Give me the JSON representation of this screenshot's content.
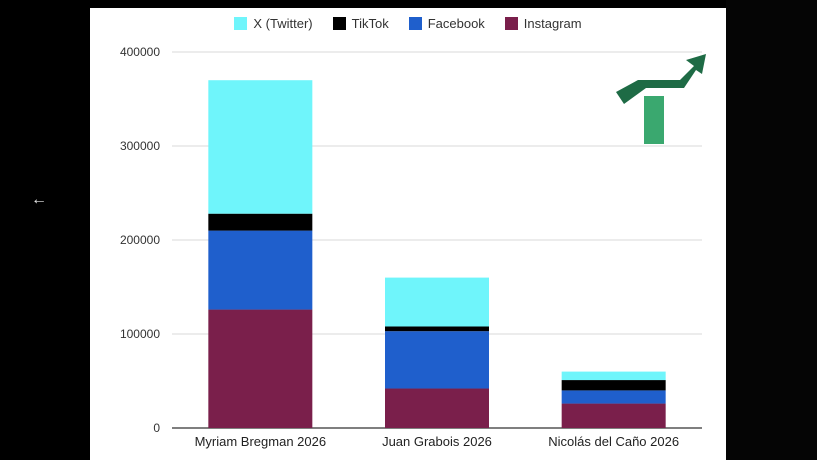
{
  "window": {
    "back_icon": "arrow-left-icon"
  },
  "logo": {
    "icon": "growth-arrow-logo-icon",
    "colors": [
      "#1e6b45",
      "#3aa86f"
    ]
  },
  "chart_data": {
    "type": "bar",
    "stacked": true,
    "categories": [
      "Myriam Bregman 2026",
      "Juan Grabois 2026",
      "Nicolás del Caño 2026"
    ],
    "series": [
      {
        "name": "Instagram",
        "color": "#7a1f4b",
        "values": [
          126000,
          42000,
          26000
        ]
      },
      {
        "name": "Facebook",
        "color": "#1f5fcc",
        "values": [
          84000,
          61000,
          14000
        ]
      },
      {
        "name": "TikTok",
        "color": "#000000",
        "values": [
          18000,
          5000,
          11000
        ]
      },
      {
        "name": "X (Twitter)",
        "color": "#6ff5fb",
        "values": [
          142000,
          52000,
          9000
        ]
      }
    ],
    "legend_order": [
      "X (Twitter)",
      "TikTok",
      "Facebook",
      "Instagram"
    ],
    "ylim": [
      0,
      400000
    ],
    "yticks": [
      "0",
      "100000",
      "200000",
      "300000",
      "400000"
    ],
    "grid": true,
    "legend_position": "top-center",
    "title": "",
    "xlabel": "",
    "ylabel": ""
  }
}
